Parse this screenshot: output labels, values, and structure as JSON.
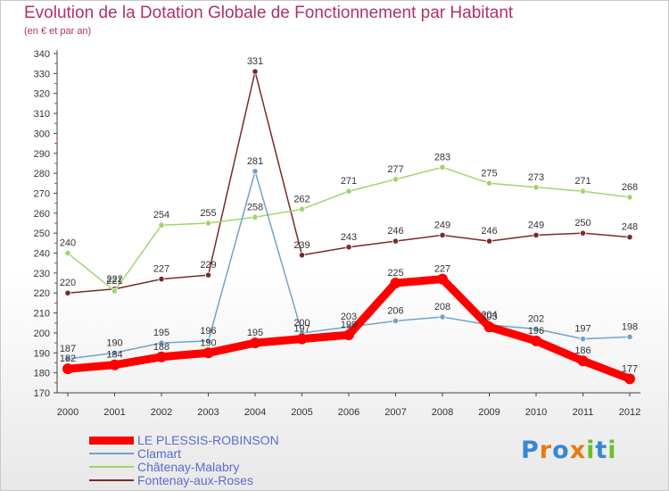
{
  "header": {
    "title": "Evolution de la Dotation Globale de Fonctionnement par Habitant",
    "subtitle": "(en € et par an)"
  },
  "brand": {
    "text": "Proxiti",
    "colors": [
      "#3a86d6",
      "#e87a12",
      "#6cbf2a"
    ]
  },
  "chart_data": {
    "type": "line",
    "title": "Evolution de la Dotation Globale de Fonctionnement par Habitant",
    "subtitle": "(en € et par an)",
    "categories": [
      "2000",
      "2001",
      "2002",
      "2003",
      "2004",
      "2005",
      "2006",
      "2007",
      "2008",
      "2009",
      "2010",
      "2011",
      "2012"
    ],
    "ylim": [
      170,
      340
    ],
    "yticks": [
      170,
      180,
      190,
      200,
      210,
      220,
      230,
      240,
      250,
      260,
      270,
      280,
      290,
      300,
      310,
      320,
      330,
      340
    ],
    "grid": false,
    "legend_position": "bottom-left",
    "series": [
      {
        "name": "LE PLESSIS-ROBINSON",
        "color": "#ff0000",
        "values": [
          182,
          184,
          188,
          190,
          195,
          197,
          199,
          225,
          227,
          203,
          196,
          186,
          177
        ]
      },
      {
        "name": "Clamart",
        "color": "#6fa3cf",
        "values": [
          187,
          190,
          195,
          196,
          281,
          200,
          203,
          206,
          208,
          204,
          202,
          197,
          198
        ]
      },
      {
        "name": "Châtenay-Malabry",
        "color": "#9ed66a",
        "values": [
          240,
          221,
          254,
          255,
          258,
          262,
          271,
          277,
          283,
          275,
          273,
          271,
          268
        ]
      },
      {
        "name": "Fontenay-aux-Roses",
        "color": "#7a2a2a",
        "values": [
          220,
          222,
          227,
          229,
          331,
          239,
          243,
          246,
          249,
          246,
          249,
          250,
          248
        ]
      }
    ]
  }
}
